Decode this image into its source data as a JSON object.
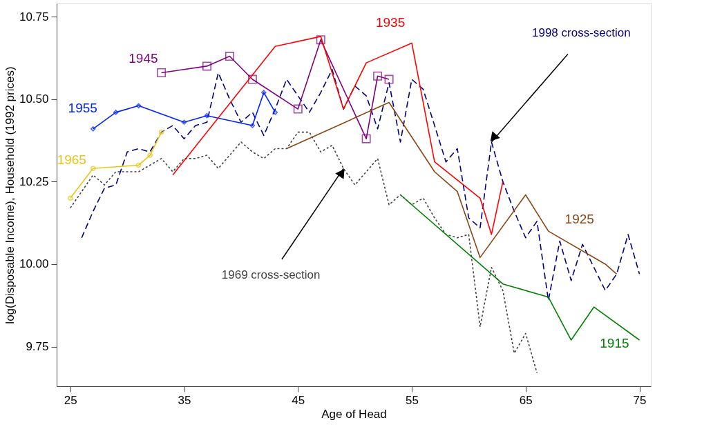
{
  "chart_data": {
    "type": "line",
    "xlabel": "Age of Head",
    "ylabel": "log(Disposable Income), Household (1992 prices)",
    "xlim": [
      23.8,
      76
    ],
    "ylim": [
      9.63,
      10.79
    ],
    "xticks": [
      25,
      35,
      45,
      55,
      65,
      75
    ],
    "yticks": [
      {
        "value": 9.75,
        "label": "9.75"
      },
      {
        "value": 10,
        "label": "10.00"
      },
      {
        "value": 10.25,
        "label": "10.25"
      },
      {
        "value": 10.5,
        "label": "10.50"
      },
      {
        "value": 10.75,
        "label": "10.75"
      }
    ],
    "grid": false,
    "series": [
      {
        "name": "1969 cross-section",
        "color": "#404040",
        "line_style": "dotted",
        "marker": "none",
        "x": [
          25,
          26,
          27,
          28,
          29,
          30,
          31,
          32,
          33,
          34,
          35,
          36,
          37,
          38,
          39,
          40,
          41,
          42,
          43,
          44,
          45,
          46,
          47,
          48,
          49,
          50,
          51,
          52,
          53,
          54,
          55,
          56,
          57,
          58,
          59,
          60,
          61,
          62,
          63,
          64,
          65,
          66
        ],
        "values": [
          10.17,
          10.22,
          10.27,
          10.24,
          10.28,
          10.28,
          10.28,
          10.3,
          10.32,
          10.28,
          10.32,
          10.32,
          10.33,
          10.29,
          10.33,
          10.37,
          10.34,
          10.32,
          10.35,
          10.35,
          10.4,
          10.4,
          10.34,
          10.36,
          10.29,
          10.24,
          10.28,
          10.32,
          10.18,
          10.21,
          10.18,
          10.2,
          10.14,
          10.09,
          10.08,
          10.09,
          9.81,
          9.99,
          9.92,
          9.73,
          9.79,
          9.67
        ]
      },
      {
        "name": "1998 cross-section",
        "color": "#000080",
        "line_style": "dashed",
        "marker": "none",
        "x": [
          26,
          27,
          28,
          29,
          30,
          31,
          32,
          33,
          34,
          35,
          36,
          37,
          38,
          39,
          40,
          41,
          42,
          43,
          44,
          45,
          46,
          47,
          48,
          49,
          50,
          51,
          52,
          53,
          54,
          55,
          56,
          57,
          58,
          59,
          60,
          61,
          62,
          63,
          64,
          65,
          66,
          67,
          68,
          69,
          70,
          71,
          72,
          73,
          74,
          75
        ],
        "values": [
          10.08,
          10.16,
          10.23,
          10.24,
          10.34,
          10.35,
          10.34,
          10.4,
          10.42,
          10.38,
          10.42,
          10.43,
          10.58,
          10.5,
          10.43,
          10.46,
          10.39,
          10.47,
          10.56,
          10.51,
          10.46,
          10.52,
          10.59,
          10.47,
          10.54,
          10.51,
          10.41,
          10.55,
          10.37,
          10.56,
          10.53,
          10.42,
          10.31,
          10.35,
          10.14,
          10.11,
          10.37,
          10.25,
          10.16,
          10.08,
          10.13,
          9.89,
          10.07,
          9.95,
          10.06,
          9.99,
          9.92,
          9.97,
          10.09,
          9.97
        ]
      },
      {
        "name": "1965",
        "color": "#e6c619",
        "line_style": "solid",
        "marker": "circle",
        "x": [
          25,
          27,
          31,
          32,
          33
        ],
        "values": [
          10.2,
          10.29,
          10.3,
          10.33,
          10.4
        ]
      },
      {
        "name": "1955",
        "color": "#0022ff",
        "line_style": "solid",
        "marker": "diamond",
        "x": [
          27,
          29,
          31,
          35,
          37,
          41,
          42,
          43
        ],
        "values": [
          10.41,
          10.46,
          10.48,
          10.43,
          10.45,
          10.42,
          10.52,
          10.46
        ]
      },
      {
        "name": "1945",
        "color": "#800080",
        "line_style": "solid",
        "marker": "square",
        "x": [
          33,
          37,
          39,
          41,
          45,
          47,
          51,
          52,
          53
        ],
        "values": [
          10.58,
          10.6,
          10.63,
          10.56,
          10.47,
          10.68,
          10.38,
          10.57,
          10.56
        ]
      },
      {
        "name": "1935",
        "color": "#ff0000",
        "line_style": "solid",
        "marker": "none",
        "x": [
          34,
          43,
          47,
          49,
          51,
          55,
          57,
          61,
          62,
          63
        ],
        "values": [
          10.27,
          10.66,
          10.69,
          10.47,
          10.61,
          10.67,
          10.31,
          10.2,
          10.09,
          10.25
        ]
      },
      {
        "name": "1925",
        "color": "#8b4513",
        "line_style": "solid",
        "marker": "none",
        "x": [
          44,
          53,
          57,
          59,
          61,
          65,
          67,
          72,
          73
        ],
        "values": [
          10.35,
          10.49,
          10.28,
          10.22,
          10.02,
          10.21,
          10.1,
          10.0,
          9.97
        ]
      },
      {
        "name": "1915",
        "color": "#008000",
        "line_style": "solid",
        "marker": "none",
        "x": [
          54,
          63,
          67,
          69,
          71,
          75
        ],
        "values": [
          10.21,
          9.94,
          9.9,
          9.77,
          9.87,
          9.77
        ]
      }
    ]
  }
}
